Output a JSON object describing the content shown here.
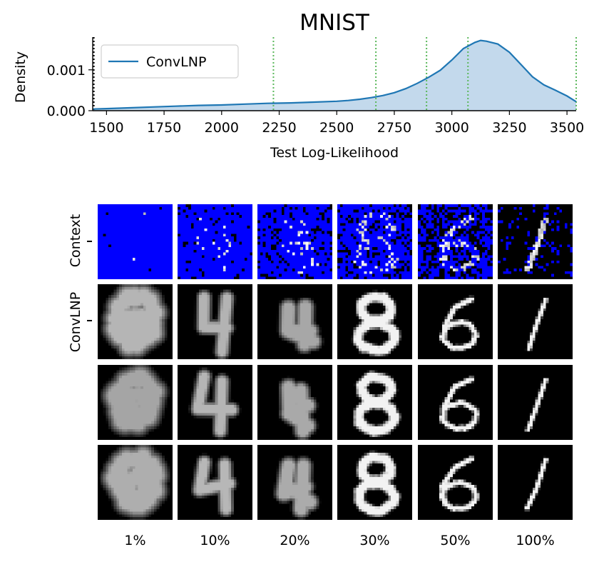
{
  "chart_data": {
    "type": "area",
    "title": "MNIST",
    "xlabel": "Test Log-Likelihood",
    "ylabel": "Density",
    "xlim": [
      1440,
      3540
    ],
    "ylim": [
      0,
      0.0018
    ],
    "x_ticks": [
      1500,
      1750,
      2000,
      2250,
      2500,
      2750,
      3000,
      3250,
      3500
    ],
    "x_tick_labels": [
      "1500",
      "1750",
      "2000",
      "2250",
      "2500",
      "2750",
      "3000",
      "3250",
      "3500"
    ],
    "y_ticks": [
      0,
      0.001
    ],
    "y_tick_labels": [
      "0.000",
      "0.001"
    ],
    "legend": {
      "entries": [
        "ConvLNP"
      ],
      "placement": "upper-left"
    },
    "grid": false,
    "series": [
      {
        "name": "ConvLNP",
        "color": "#1f77b4",
        "fill_color": "#c3d9ec",
        "x": [
          1440,
          1500,
          1600,
          1700,
          1800,
          1900,
          2000,
          2100,
          2200,
          2300,
          2400,
          2500,
          2550,
          2600,
          2650,
          2700,
          2750,
          2800,
          2850,
          2900,
          2950,
          3000,
          3050,
          3100,
          3125,
          3150,
          3200,
          3250,
          3300,
          3350,
          3400,
          3450,
          3500,
          3540
        ],
        "y": [
          4e-05,
          5e-05,
          7e-05,
          9e-05,
          0.00011,
          0.00013,
          0.00014,
          0.00016,
          0.00018,
          0.00019,
          0.00021,
          0.00023,
          0.00025,
          0.00028,
          0.00032,
          0.00037,
          0.00044,
          0.00054,
          0.00067,
          0.00082,
          0.00099,
          0.00124,
          0.00152,
          0.00167,
          0.00172,
          0.0017,
          0.00163,
          0.00143,
          0.00113,
          0.00083,
          0.00063,
          0.0005,
          0.00036,
          0.00022
        ]
      }
    ],
    "vlines": [
      {
        "x": 1445,
        "color": "#000000",
        "style": "dotted"
      },
      {
        "x": 2225,
        "color": "#5cb85c",
        "style": "dotted"
      },
      {
        "x": 2670,
        "color": "#5cb85c",
        "style": "dotted"
      },
      {
        "x": 2890,
        "color": "#5cb85c",
        "style": "dotted"
      },
      {
        "x": 3070,
        "color": "#5cb85c",
        "style": "dotted"
      },
      {
        "x": 3540,
        "color": "#5cb85c",
        "style": "dotted"
      }
    ]
  },
  "grid": {
    "row_labels": [
      "Context",
      "ConvLNP"
    ],
    "column_labels": [
      "1%",
      "10%",
      "20%",
      "30%",
      "50%",
      "100%"
    ],
    "context_background_color": "#0000ff",
    "sample_background_color": "#000000",
    "context_fractions": [
      0.01,
      0.1,
      0.2,
      0.3,
      0.5,
      1.0
    ],
    "sample_rows": 3
  }
}
